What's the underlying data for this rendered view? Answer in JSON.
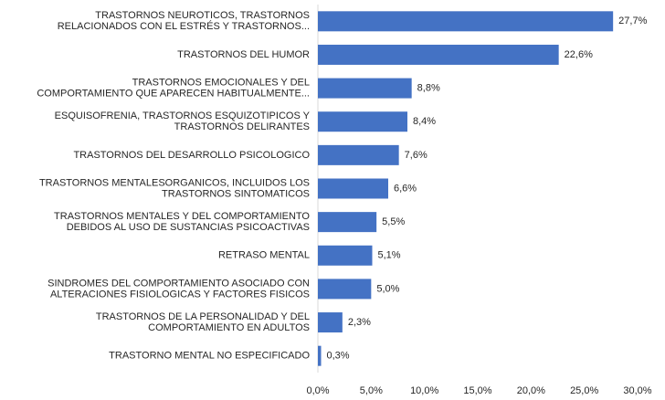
{
  "chart_data": {
    "type": "hbar",
    "color": "#4472c4",
    "grid": false,
    "categories": [
      [
        "TRASTORNOS NEUROTICOS, TRASTORNOS",
        "RELACIONADOS CON EL ESTRÉS Y TRASTORNOS..."
      ],
      [
        "TRASTORNOS DEL HUMOR"
      ],
      [
        "TRASTORNOS EMOCIONALES Y DEL",
        "COMPORTAMIENTO QUE APARECEN HABITUALMENTE..."
      ],
      [
        "ESQUISOFRENIA, TRASTORNOS ESQUIZOTIPICOS Y",
        "TRASTORNOS DELIRANTES"
      ],
      [
        "TRASTORNOS DEL DESARROLLO PSICOLOGICO"
      ],
      [
        "TRASTORNOS MENTALESORGANICOS, INCLUIDOS LOS",
        "TRASTORNOS SINTOMATICOS"
      ],
      [
        "TRASTORNOS MENTALES Y DEL COMPORTAMIENTO",
        "DEBIDOS AL USO DE SUSTANCIAS PSICOACTIVAS"
      ],
      [
        "RETRASO MENTAL"
      ],
      [
        "SINDROMES DEL COMPORTAMIENTO ASOCIADO CON",
        "ALTERACIONES FISIOLOGICAS Y FACTORES FISICOS"
      ],
      [
        "TRASTORNOS DE LA PERSONALIDAD Y DEL",
        "COMPORTAMIENTO EN ADULTOS"
      ],
      [
        "TRASTORNO MENTAL NO ESPECIFICADO"
      ]
    ],
    "values": [
      27.7,
      22.6,
      8.8,
      8.4,
      7.6,
      6.6,
      5.5,
      5.1,
      5.0,
      2.3,
      0.3
    ],
    "value_labels": [
      "27,7%",
      "22,6%",
      "8,8%",
      "8,4%",
      "7,6%",
      "6,6%",
      "5,5%",
      "5,1%",
      "5,0%",
      "2,3%",
      "0,3%"
    ],
    "xlim": [
      0,
      30
    ],
    "xticks": [
      {
        "value": 0,
        "label": "0,0%"
      },
      {
        "value": 5,
        "label": "5,0%"
      },
      {
        "value": 10,
        "label": "10,0%"
      },
      {
        "value": 15,
        "label": "15,0%"
      },
      {
        "value": 20,
        "label": "20,0%"
      },
      {
        "value": 25,
        "label": "25,0%"
      },
      {
        "value": 30,
        "label": "30,0%"
      }
    ]
  }
}
